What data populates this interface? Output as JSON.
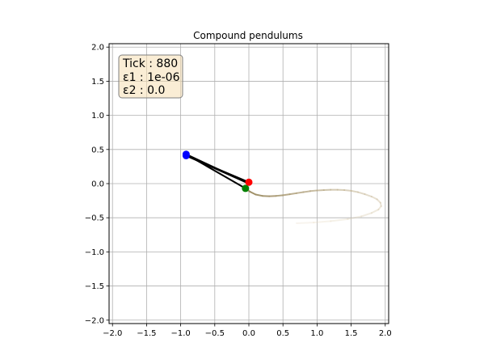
{
  "chart_data": {
    "type": "line",
    "title": "Compound pendulums",
    "xlabel": "",
    "ylabel": "",
    "xlim": [
      -2.05,
      2.05
    ],
    "ylim": [
      -2.05,
      2.05
    ],
    "xticks": [
      -2.0,
      -1.5,
      -1.0,
      -0.5,
      0.0,
      0.5,
      1.0,
      1.5,
      2.0
    ],
    "yticks": [
      -2.0,
      -1.5,
      -1.0,
      -0.5,
      0.0,
      0.5,
      1.0,
      1.5,
      2.0
    ],
    "xtick_labels": [
      "−2.0",
      "−1.5",
      "−1.0",
      "−0.5",
      "0.0",
      "0.5",
      "1.0",
      "1.5",
      "2.0"
    ],
    "ytick_labels": [
      "−2.0",
      "−1.5",
      "−1.0",
      "−0.5",
      "0.0",
      "0.5",
      "1.0",
      "1.5",
      "2.0"
    ],
    "grid": true,
    "info_box": {
      "lines": [
        "Tick : 880",
        "ε1 : 1e-06",
        "ε2 : 0.0"
      ],
      "placement": "top-left"
    },
    "pivot": {
      "x": 0.0,
      "y": 0.0,
      "color": "#ff0000"
    },
    "pendulums": [
      {
        "mid": {
          "x": -0.92,
          "y": 0.41
        },
        "end": {
          "x": 0.0,
          "y": 0.02
        },
        "joint_color": "#0000ff",
        "end_color": "#ff0000"
      },
      {
        "mid": {
          "x": -0.92,
          "y": 0.43
        },
        "end": {
          "x": -0.05,
          "y": -0.07
        },
        "joint_color": "#0000ff",
        "end_color": "#008000"
      }
    ],
    "rod_color": "#000000",
    "trail": {
      "color_recent": "#9a8a60",
      "color_old": "#e8dcc4",
      "points": [
        [
          -0.05,
          -0.07
        ],
        [
          0.02,
          -0.12
        ],
        [
          0.1,
          -0.16
        ],
        [
          0.2,
          -0.18
        ],
        [
          0.3,
          -0.185
        ],
        [
          0.4,
          -0.18
        ],
        [
          0.5,
          -0.17
        ],
        [
          0.6,
          -0.155
        ],
        [
          0.7,
          -0.14
        ],
        [
          0.8,
          -0.125
        ],
        [
          0.9,
          -0.11
        ],
        [
          1.0,
          -0.1
        ],
        [
          1.1,
          -0.095
        ],
        [
          1.2,
          -0.09
        ],
        [
          1.3,
          -0.09
        ],
        [
          1.4,
          -0.095
        ],
        [
          1.5,
          -0.105
        ],
        [
          1.6,
          -0.125
        ],
        [
          1.7,
          -0.155
        ],
        [
          1.8,
          -0.19
        ],
        [
          1.88,
          -0.23
        ],
        [
          1.93,
          -0.28
        ],
        [
          1.94,
          -0.33
        ],
        [
          1.9,
          -0.38
        ],
        [
          1.8,
          -0.43
        ],
        [
          1.65,
          -0.48
        ],
        [
          1.45,
          -0.52
        ],
        [
          1.2,
          -0.55
        ],
        [
          0.95,
          -0.57
        ],
        [
          0.7,
          -0.58
        ]
      ]
    }
  }
}
